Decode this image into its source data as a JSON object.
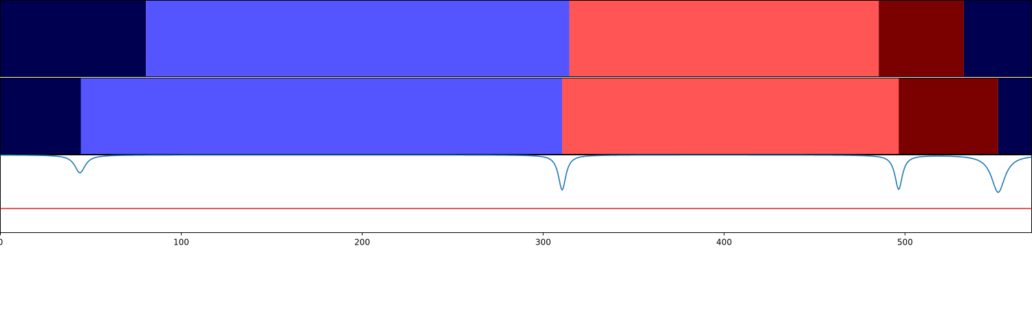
{
  "chart_data": {
    "type": "segmented-bars-and-line",
    "xlim": [
      0,
      570
    ],
    "xticks": [
      0,
      100,
      200,
      300,
      400,
      500
    ],
    "xtick_labels": [
      "0",
      "100",
      "200",
      "300",
      "400",
      "500"
    ],
    "xlabel": "",
    "title": "",
    "grid": false,
    "colors": {
      "dark_navy": "#000050",
      "blue": "#5555ff",
      "light_red": "#ff5555",
      "dark_red": "#7b0000",
      "curve": "#1f77b4",
      "threshold": "#d62728"
    },
    "rows": [
      {
        "segments": [
          {
            "start": 0,
            "end": 80.5,
            "color": "#000050"
          },
          {
            "start": 80.5,
            "end": 314.5,
            "color": "#5555ff"
          },
          {
            "start": 314.5,
            "end": 485.5,
            "color": "#ff5555"
          },
          {
            "start": 485.5,
            "end": 532.5,
            "color": "#7b0000"
          },
          {
            "start": 532.5,
            "end": 570,
            "color": "#000050"
          }
        ]
      },
      {
        "segments": [
          {
            "start": 0,
            "end": 44.5,
            "color": "#000050"
          },
          {
            "start": 44.5,
            "end": 310.5,
            "color": "#5555ff"
          },
          {
            "start": 310.5,
            "end": 496.5,
            "color": "#ff5555"
          },
          {
            "start": 496.5,
            "end": 551.5,
            "color": "#7b0000"
          },
          {
            "start": 551.5,
            "end": 570,
            "color": "#000050"
          }
        ]
      }
    ],
    "line_panel": {
      "ylim": [
        0,
        1
      ],
      "baseline": 1.0,
      "threshold": 0.31,
      "dips": [
        {
          "x": 44,
          "min": 0.77,
          "width": 3.5
        },
        {
          "x": 310.5,
          "min": 0.55,
          "width": 2.5
        },
        {
          "x": 496.5,
          "min": 0.56,
          "width": 2.5
        },
        {
          "x": 551.5,
          "min": 0.52,
          "width": 4.5
        }
      ]
    }
  }
}
